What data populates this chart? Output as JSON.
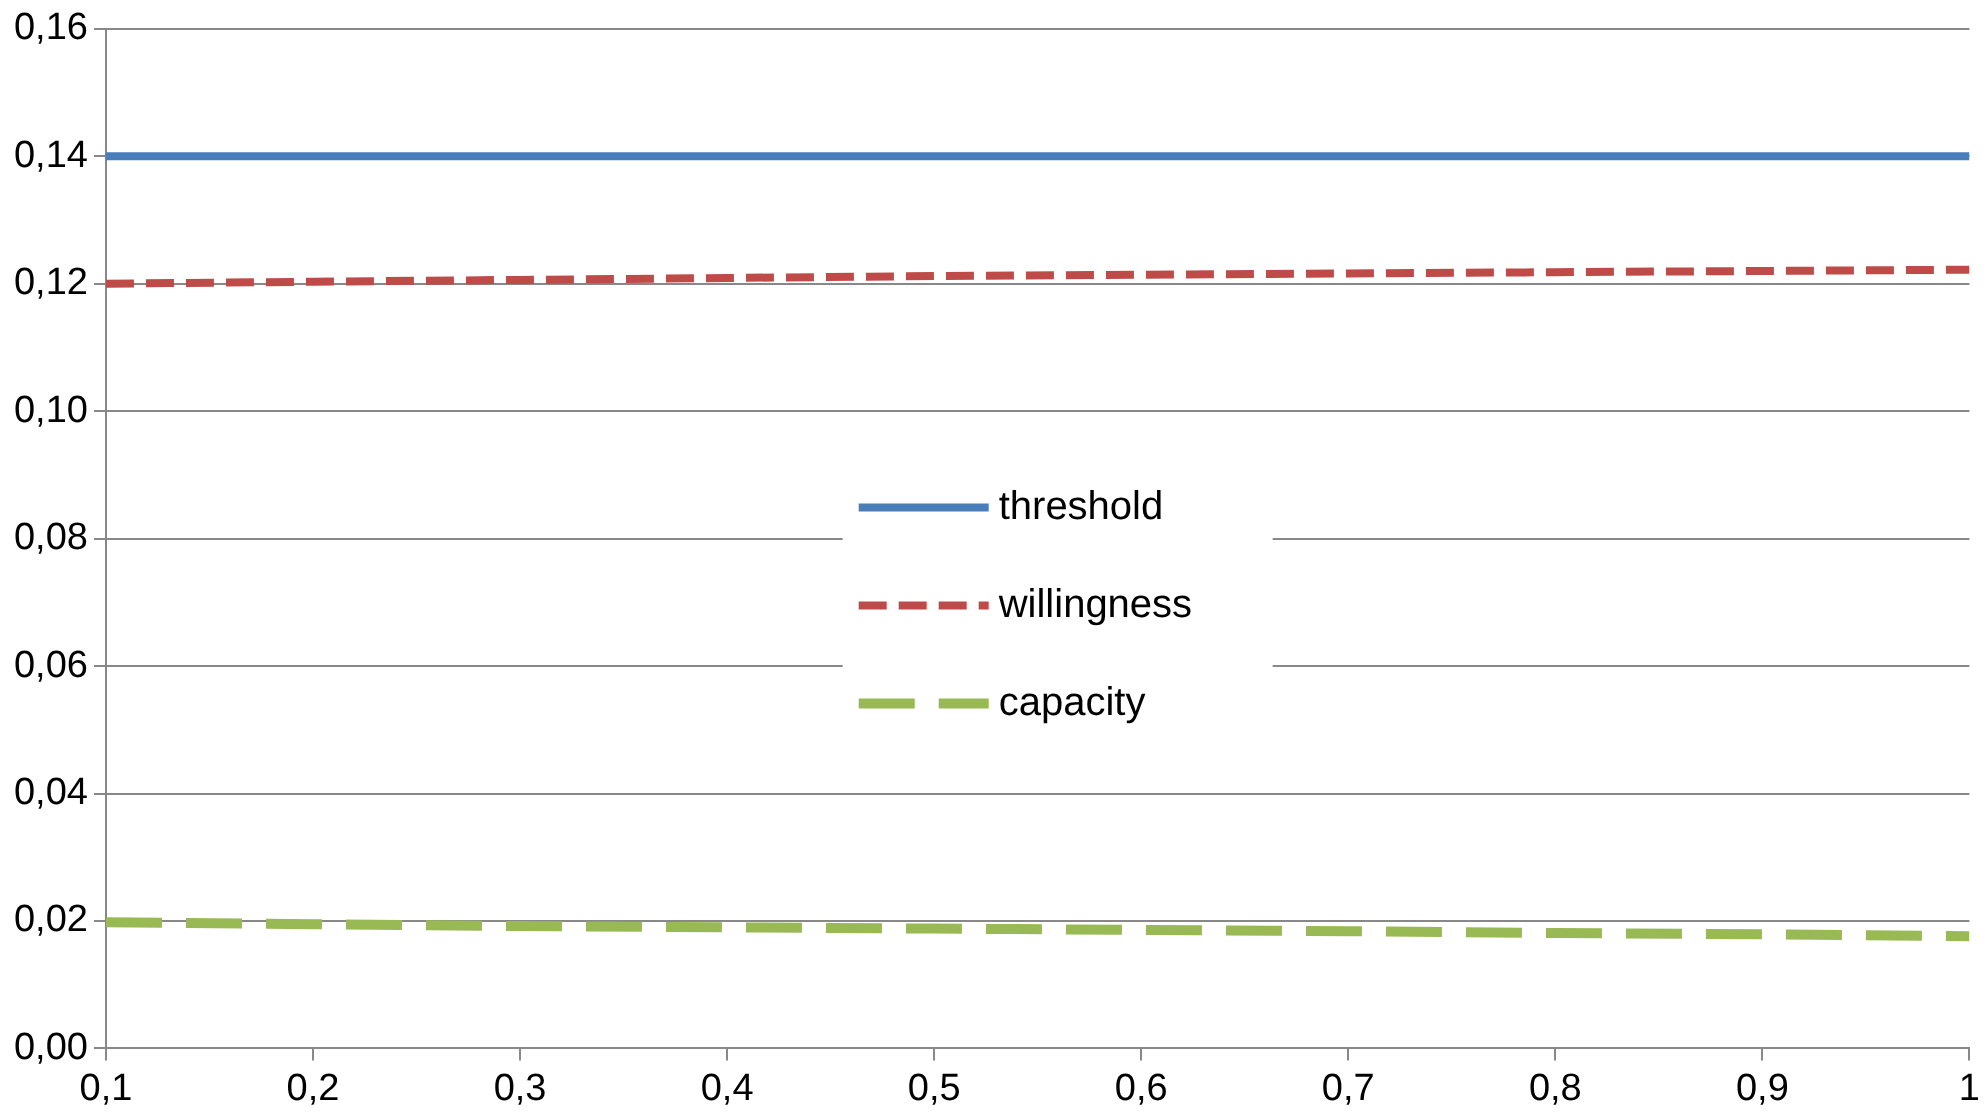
{
  "chart_data": {
    "type": "line",
    "x": [
      0.1,
      0.2,
      0.3,
      0.4,
      0.5,
      0.6,
      0.7,
      0.8,
      0.9,
      1
    ],
    "series": [
      {
        "name": "threshold",
        "color": "#4a7ebb",
        "line_style": "solid",
        "values": [
          0.14,
          0.14,
          0.14,
          0.14,
          0.14,
          0.14,
          0.14,
          0.14,
          0.14,
          0.14
        ]
      },
      {
        "name": "willingness",
        "color": "#be4b48",
        "line_style": "dashed",
        "values": [
          0.12,
          0.1203,
          0.1206,
          0.1209,
          0.1212,
          0.1214,
          0.1216,
          0.1218,
          0.122,
          0.1222
        ]
      },
      {
        "name": "capacity",
        "color": "#98b954",
        "line_style": "dashed",
        "values": [
          0.0198,
          0.0195,
          0.0192,
          0.019,
          0.0188,
          0.0186,
          0.0184,
          0.0181,
          0.0179,
          0.0176
        ]
      }
    ],
    "xlim": [
      0.1,
      1
    ],
    "xticks": [
      {
        "value": 0.1,
        "label": "0,1"
      },
      {
        "value": 0.2,
        "label": "0,2"
      },
      {
        "value": 0.3,
        "label": "0,3"
      },
      {
        "value": 0.4,
        "label": "0,4"
      },
      {
        "value": 0.5,
        "label": "0,5"
      },
      {
        "value": 0.6,
        "label": "0,6"
      },
      {
        "value": 0.7,
        "label": "0,7"
      },
      {
        "value": 0.8,
        "label": "0,8"
      },
      {
        "value": 0.9,
        "label": "0,9"
      },
      {
        "value": 1,
        "label": "1"
      }
    ],
    "ylim": [
      0,
      0.16
    ],
    "yticks": [
      {
        "value": 0,
        "label": "0,00"
      },
      {
        "value": 0.02,
        "label": "0,02"
      },
      {
        "value": 0.04,
        "label": "0,04"
      },
      {
        "value": 0.06,
        "label": "0,06"
      },
      {
        "value": 0.08,
        "label": "0,08"
      },
      {
        "value": 0.1,
        "label": "0,10"
      },
      {
        "value": 0.12,
        "label": "0,12"
      },
      {
        "value": 0.14,
        "label": "0,14"
      },
      {
        "value": 0.16,
        "label": "0,16"
      }
    ],
    "grid": "y",
    "legend": "center",
    "marker": "none"
  }
}
